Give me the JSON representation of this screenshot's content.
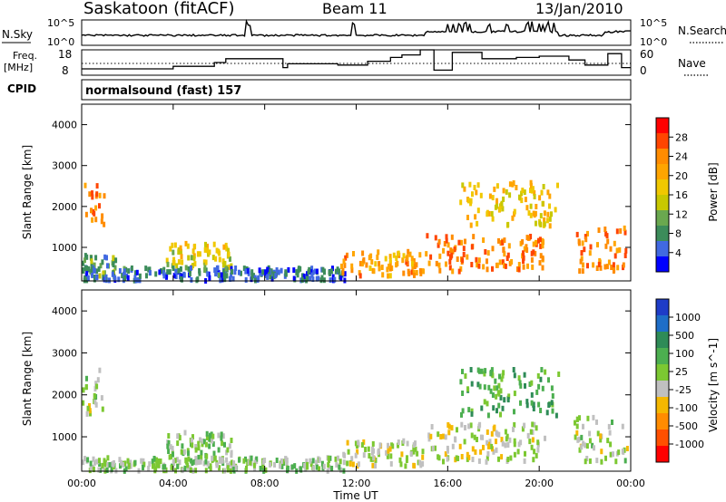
{
  "header": {
    "station": "Saskatoon (fitACF)",
    "beam": "Beam 11",
    "date": "13/Jan/2010"
  },
  "top_panels": {
    "nsky_label": "N.Sky",
    "nsky_ticks": [
      "10^5",
      "10^0"
    ],
    "nsearch_label": "N.Search",
    "freq_label_1": "Freq.",
    "freq_label_2": "[MHz]",
    "freq_ticks": [
      "18",
      "8"
    ],
    "nave_ticks": [
      "60",
      "0"
    ],
    "nave_label": "Nave",
    "cpid_label": "CPID",
    "cpid_text": "normalsound (fast) 157"
  },
  "axes": {
    "ylabel": "Slant Range [km]",
    "xlabel": "Time UT",
    "y_ticks": [
      "1000",
      "2000",
      "3000",
      "4000"
    ],
    "x_ticks": [
      "00:00",
      "04:00",
      "08:00",
      "12:00",
      "16:00",
      "20:00",
      "00:00"
    ]
  },
  "power_bar": {
    "label": "Power [dB]",
    "ticks": [
      "28",
      "24",
      "20",
      "16",
      "12",
      "8",
      "4"
    ],
    "colors": [
      "#ff0000",
      "#ff4500",
      "#ff8c00",
      "#ffa500",
      "#f0c800",
      "#c8c800",
      "#6aa84f",
      "#3c8c5a",
      "#4169e1",
      "#0000ff"
    ]
  },
  "velocity_bar": {
    "label": "Velocity [m s^-1]",
    "ticks": [
      "1000",
      "500",
      "100",
      "25",
      "-25",
      "-100",
      "-500",
      "-1000"
    ],
    "colors": [
      "#1e3cc8",
      "#1e6ec8",
      "#2e8b57",
      "#4caf50",
      "#7cc832",
      "#c0c0c0",
      "#f5b800",
      "#ff8c00",
      "#ff5000",
      "#ff0000"
    ]
  },
  "chart_data": {
    "type": "heatmap",
    "title": "Saskatoon (fitACF) Beam 11 13/Jan/2010",
    "xlabel": "Time UT",
    "ylabel": "Slant Range [km]",
    "xlim": [
      0,
      24
    ],
    "ylim": [
      180,
      4500
    ],
    "x_unit": "hours UT",
    "panels": [
      {
        "name": "Power",
        "colorbar_label": "Power [dB]",
        "colorbar_range": [
          0,
          32
        ],
        "regions": [
          {
            "t0": 0.1,
            "t1": 1.0,
            "r0": 1500,
            "r1": 2600,
            "v": 24
          },
          {
            "t0": 0.0,
            "t1": 1.5,
            "r0": 300,
            "r1": 800,
            "v": 10
          },
          {
            "t0": 3.6,
            "t1": 6.5,
            "r0": 500,
            "r1": 1100,
            "v": 16
          },
          {
            "t0": 0.0,
            "t1": 11.5,
            "r0": 180,
            "r1": 500,
            "v": 6
          },
          {
            "t0": 11.3,
            "t1": 14.9,
            "r0": 300,
            "r1": 900,
            "v": 22
          },
          {
            "t0": 15.0,
            "t1": 20.2,
            "r0": 400,
            "r1": 1300,
            "v": 24
          },
          {
            "t0": 16.5,
            "t1": 20.8,
            "r0": 1500,
            "r1": 2600,
            "v": 18
          },
          {
            "t0": 21.5,
            "t1": 23.8,
            "r0": 400,
            "r1": 1500,
            "v": 24
          }
        ]
      },
      {
        "name": "Velocity",
        "colorbar_label": "Velocity [m s^-1]",
        "colorbar_range": [
          -1000,
          1000
        ],
        "regions": [
          {
            "t0": 0.0,
            "t1": 1.0,
            "r0": 1500,
            "r1": 2600,
            "v": 0
          },
          {
            "t0": 3.6,
            "t1": 6.5,
            "r0": 500,
            "r1": 1100,
            "v": 100
          },
          {
            "t0": 0.0,
            "t1": 11.5,
            "r0": 180,
            "r1": 500,
            "v": 50
          },
          {
            "t0": 11.3,
            "t1": 14.9,
            "r0": 300,
            "r1": 900,
            "v": -50
          },
          {
            "t0": 15.0,
            "t1": 20.2,
            "r0": 400,
            "r1": 1300,
            "v": -80
          },
          {
            "t0": 16.5,
            "t1": 20.8,
            "r0": 1500,
            "r1": 2600,
            "v": 300
          },
          {
            "t0": 21.5,
            "t1": 23.8,
            "r0": 400,
            "r1": 1500,
            "v": 0
          }
        ]
      }
    ],
    "frequency_MHz": {
      "ylim": [
        8,
        18
      ],
      "t": [
        0,
        3.5,
        4.0,
        5.0,
        5.8,
        6.3,
        8.8,
        9.0,
        11.2,
        12.5,
        13.5,
        14.0,
        14.8,
        15.4,
        16.2,
        17.5,
        18.0,
        19.0,
        20.0,
        21.3,
        22.0,
        23.0,
        23.6,
        24
      ],
      "f": [
        10.5,
        10.5,
        11.5,
        11.5,
        13.0,
        14.5,
        11.0,
        12.5,
        12.0,
        13.5,
        15.0,
        16.0,
        18.0,
        10.0,
        17.0,
        14.5,
        14.5,
        15.0,
        15.5,
        14.0,
        12.0,
        16.5,
        11.0,
        11.0
      ]
    },
    "nave_range": [
      0,
      60
    ],
    "nsky_range": [
      "10^0",
      "10^5"
    ]
  }
}
